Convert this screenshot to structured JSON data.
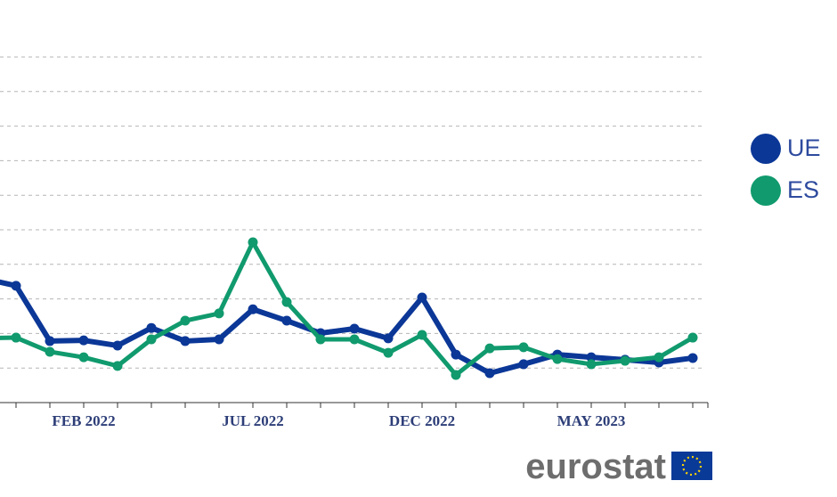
{
  "chart_data": {
    "type": "line",
    "categories": [
      null,
      null,
      null,
      "FEB 2022",
      null,
      null,
      null,
      null,
      "JUL 2022",
      null,
      null,
      null,
      null,
      "DEC 2022",
      null,
      null,
      null,
      null,
      "MAY 2023",
      null,
      null,
      null
    ],
    "series": [
      {
        "name": "UE",
        "color": "#0b3797",
        "values": [
          3.6,
          3.38,
          1.78,
          1.8,
          1.65,
          2.16,
          1.78,
          1.83,
          2.7,
          2.37,
          2.01,
          2.14,
          1.86,
          3.04,
          1.39,
          0.85,
          1.11,
          1.39,
          1.31,
          1.24,
          1.16,
          1.29
        ]
      },
      {
        "name": "ES",
        "color": "#109a6d",
        "values": [
          1.86,
          1.88,
          1.47,
          1.31,
          1.06,
          1.83,
          2.37,
          2.58,
          4.64,
          2.91,
          1.83,
          1.83,
          1.44,
          1.96,
          0.8,
          1.57,
          1.6,
          1.26,
          1.11,
          1.21,
          1.31,
          1.88
        ]
      }
    ],
    "ylim": [
      0,
      10
    ],
    "yticks": [
      1,
      2,
      3,
      4,
      5,
      6,
      7,
      8,
      9,
      10
    ],
    "grid": true,
    "legend": "right",
    "logo": "eurostat"
  }
}
